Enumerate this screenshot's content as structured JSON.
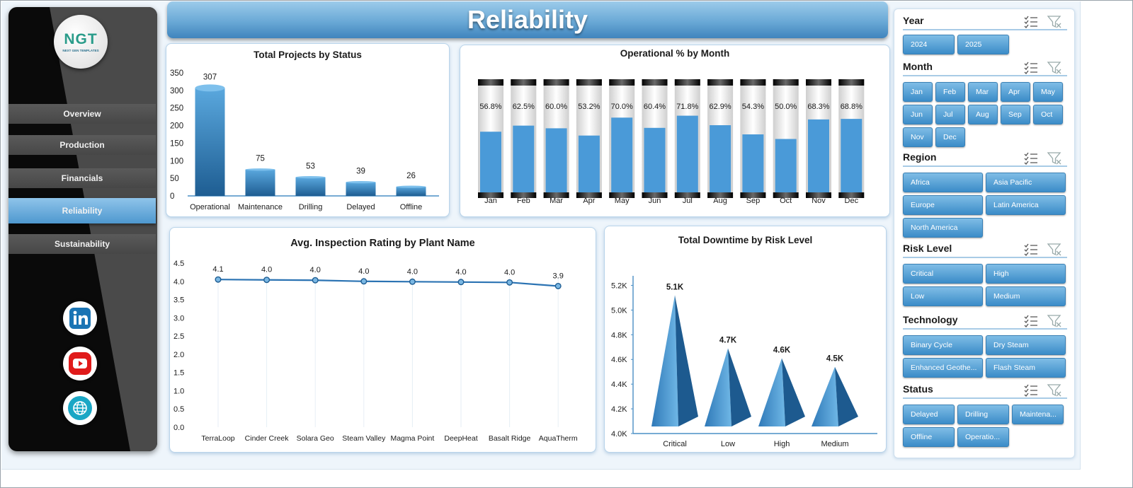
{
  "header": {
    "title": "Reliability"
  },
  "logo": {
    "mark": "NGT",
    "tagline": "NEXT GEN TEMPLATES"
  },
  "sidebar": {
    "items": [
      {
        "label": "Overview",
        "active": false
      },
      {
        "label": "Production",
        "active": false
      },
      {
        "label": "Financials",
        "active": false
      },
      {
        "label": "Reliability",
        "active": true
      },
      {
        "label": "Sustainability",
        "active": false
      }
    ],
    "social": [
      "linkedin-icon",
      "youtube-icon",
      "globe-icon"
    ]
  },
  "colors": {
    "accent": "#4a90c8",
    "bar": "#4a9ad8",
    "dark": "#1f6ea6"
  },
  "charts": {
    "status": {
      "title": "Total Projects by Status",
      "chart_data": {
        "type": "bar",
        "categories": [
          "Operational",
          "Maintenance",
          "Drilling",
          "Delayed",
          "Offline"
        ],
        "values": [
          307,
          75,
          53,
          39,
          26
        ],
        "data_labels": [
          "307",
          "75",
          "53",
          "39",
          "26"
        ],
        "ylim": [
          0,
          350
        ],
        "yticks": [
          "0",
          "50",
          "100",
          "150",
          "200",
          "250",
          "300",
          "350"
        ]
      }
    },
    "monthly": {
      "title": "Operational % by Month",
      "chart_data": {
        "type": "bar",
        "categories": [
          "Jan",
          "Feb",
          "Mar",
          "Apr",
          "May",
          "Jun",
          "Jul",
          "Aug",
          "Sep",
          "Oct",
          "Nov",
          "Dec"
        ],
        "values": [
          56.8,
          62.5,
          60.0,
          53.2,
          70.0,
          60.4,
          71.8,
          62.9,
          54.3,
          50.0,
          68.3,
          68.8
        ],
        "data_labels": [
          "56.8%",
          "62.5%",
          "60.0%",
          "53.2%",
          "70.0%",
          "60.4%",
          "71.8%",
          "62.9%",
          "54.3%",
          "50.0%",
          "68.3%",
          "68.8%"
        ],
        "ylim": [
          0,
          100
        ]
      }
    },
    "inspection": {
      "title": "Avg. Inspection Rating by Plant Name",
      "chart_data": {
        "type": "line",
        "categories": [
          "TerraLoop",
          "Cinder Creek",
          "Solara Geo",
          "Steam Valley",
          "Magma Point",
          "DeepHeat",
          "Basalt Ridge",
          "AquaTherm"
        ],
        "values": [
          4.05,
          4.04,
          4.03,
          4.0,
          3.99,
          3.98,
          3.97,
          3.87
        ],
        "data_labels": [
          "4.1",
          "4.0",
          "4.0",
          "4.0",
          "4.0",
          "4.0",
          "4.0",
          "3.9"
        ],
        "ylim": [
          0,
          4.5
        ],
        "yticks": [
          "0.0",
          "0.5",
          "1.0",
          "1.5",
          "2.0",
          "2.5",
          "3.0",
          "3.5",
          "4.0",
          "4.5"
        ]
      }
    },
    "downtime": {
      "title": "Total Downtime by Risk Level",
      "chart_data": {
        "type": "bar",
        "categories": [
          "Critical",
          "Low",
          "High",
          "Medium"
        ],
        "values": [
          5120,
          4690,
          4610,
          4540
        ],
        "data_labels": [
          "5.1K",
          "4.7K",
          "4.6K",
          "4.5K"
        ],
        "ylim": [
          4000,
          5300
        ],
        "yticks": [
          "4.0K",
          "4.2K",
          "4.4K",
          "4.6K",
          "4.8K",
          "5.0K",
          "5.2K"
        ]
      }
    }
  },
  "slicers": [
    {
      "label": "Year",
      "items": [
        "2024",
        "2025"
      ]
    },
    {
      "label": "Month",
      "items": [
        "Jan",
        "Feb",
        "Mar",
        "Apr",
        "May",
        "Jun",
        "Jul",
        "Aug",
        "Sep",
        "Oct",
        "Nov",
        "Dec"
      ]
    },
    {
      "label": "Region",
      "items": [
        "Africa",
        "Asia Pacific",
        "Europe",
        "Latin America",
        "North America"
      ]
    },
    {
      "label": "Risk Level",
      "items": [
        "Critical",
        "High",
        "Low",
        "Medium"
      ]
    },
    {
      "label": "Technology",
      "items": [
        "Binary Cycle",
        "Dry Steam",
        "Enhanced Geothe...",
        "Flash Steam"
      ]
    },
    {
      "label": "Status",
      "items": [
        "Delayed",
        "Drilling",
        "Maintena...",
        "Offline",
        "Operatio..."
      ]
    }
  ]
}
